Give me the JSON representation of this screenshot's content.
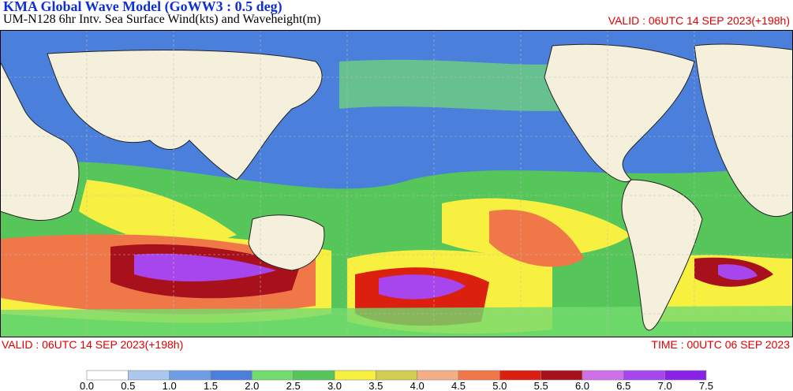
{
  "header": {
    "title": "KMA  Global Wave Model (GoWW3 : 0.5 deg)",
    "subtitle": "UM-N128  6hr Intv. Sea Surface Wind(kts) and Waveheight(m)",
    "valid": "VALID : 06UTC 14 SEP 2023(+198h)"
  },
  "footer": {
    "valid": "VALID : 06UTC 14 SEP 2023(+198h)",
    "time": "TIME : 00UTC 06 SEP 2023"
  },
  "colorbar": {
    "labels": [
      "0.0",
      "0.5",
      "1.0",
      "1.5",
      "2.0",
      "2.5",
      "3.0",
      "3.5",
      "4.0",
      "4.5",
      "5.0",
      "5.5",
      "6.0",
      "6.5",
      "7.0",
      "7.5"
    ],
    "colors": [
      "#ffffff",
      "#aac8f0",
      "#6e9ee6",
      "#4a7fdc",
      "#72dc6e",
      "#56c65a",
      "#f8f040",
      "#d2cc50",
      "#f4ae86",
      "#f07848",
      "#dc2010",
      "#a8101c",
      "#d070e8",
      "#a646ec",
      "#8a22e6"
    ]
  }
}
